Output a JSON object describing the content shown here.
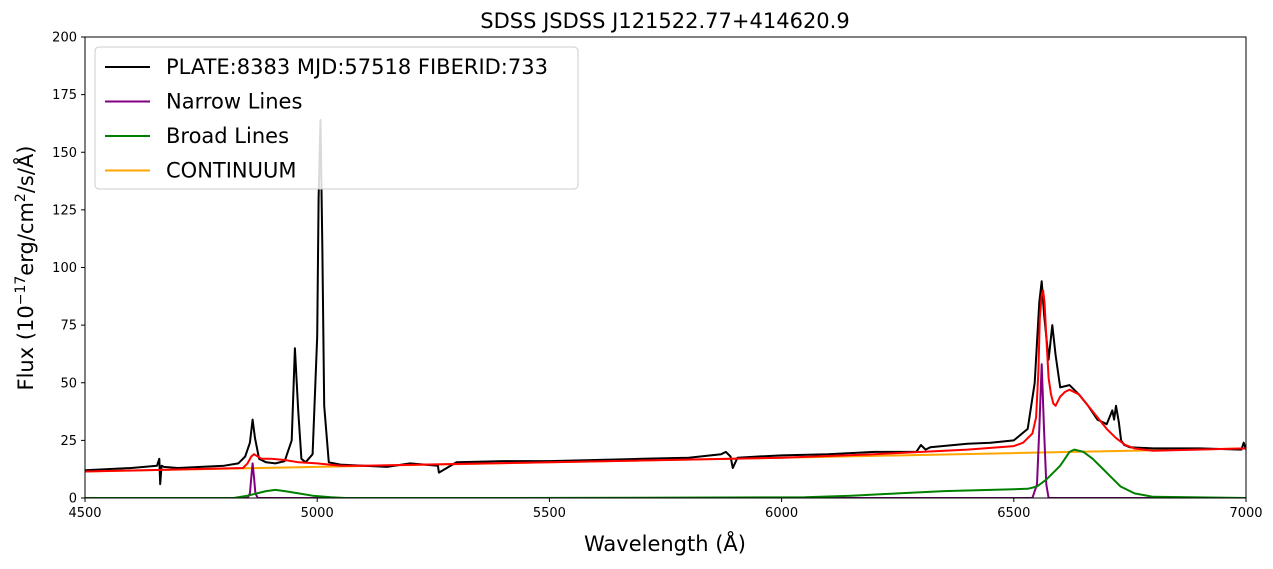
{
  "chart_data": {
    "type": "line",
    "title": "SDSS JSDSS J121522.77+414620.9",
    "xlabel": "Wavelength (Å)",
    "ylabel": {
      "prefix": "Flux (10",
      "exp1": "−17",
      "mid": "erg/cm",
      "exp2": "2",
      "suffix": "/s/Å)"
    },
    "xlim": [
      4500,
      7000
    ],
    "ylim": [
      0,
      200
    ],
    "xticks": [
      "4500",
      "5000",
      "5500",
      "6000",
      "6500",
      "7000"
    ],
    "yticks": [
      "0",
      "25",
      "50",
      "75",
      "100",
      "125",
      "150",
      "175",
      "200"
    ],
    "grid": false,
    "legend_position": "top-left",
    "legend": [
      {
        "label": "PLATE:8383 MJD:57518 FIBERID:733",
        "color": "#000000"
      },
      {
        "label": "Narrow Lines",
        "color": "#800080"
      },
      {
        "label": "Broad Lines",
        "color": "#008000"
      },
      {
        "label": "CONTINUUM",
        "color": "#ffa500"
      }
    ],
    "series": [
      {
        "name": "PLATE:8383 MJD:57518 FIBERID:733",
        "color": "#000000",
        "x": [
          4500,
          4600,
          4655,
          4660,
          4662,
          4665,
          4670,
          4700,
          4750,
          4800,
          4830,
          4845,
          4855,
          4861,
          4866,
          4875,
          4890,
          4910,
          4930,
          4945,
          4952,
          4959,
          4966,
          4975,
          4990,
          5000,
          5003,
          5007,
          5011,
          5015,
          5025,
          5050,
          5100,
          5150,
          5200,
          5260,
          5262,
          5300,
          5400,
          5500,
          5600,
          5700,
          5800,
          5870,
          5880,
          5890,
          5895,
          5905,
          5950,
          6000,
          6100,
          6200,
          6290,
          6300,
          6310,
          6320,
          6400,
          6450,
          6500,
          6530,
          6545,
          6555,
          6560,
          6565,
          6575,
          6583,
          6590,
          6600,
          6620,
          6640,
          6660,
          6680,
          6700,
          6712,
          6716,
          6720,
          6726,
          6731,
          6738,
          6750,
          6800,
          6900,
          6990,
          6995,
          7000
        ],
        "values": [
          12,
          13,
          14,
          17,
          6,
          14,
          13.5,
          13,
          13.5,
          14,
          15,
          18,
          24,
          34,
          26,
          17,
          15.5,
          15,
          16,
          25,
          65,
          38,
          17,
          15.5,
          19,
          70,
          130,
          164,
          110,
          40,
          15.5,
          14.5,
          14,
          13.5,
          15,
          14,
          11,
          15.5,
          16,
          16,
          16.5,
          17,
          17.5,
          19,
          20,
          18,
          13,
          17.5,
          18,
          18.5,
          19,
          20,
          20,
          23,
          21,
          22,
          23.5,
          24,
          25,
          30,
          50,
          85,
          94,
          80,
          60,
          75,
          62,
          48,
          49,
          45,
          40,
          34,
          32,
          38,
          34,
          40,
          33,
          25,
          23,
          22,
          21.5,
          21.5,
          21,
          24,
          21
        ]
      },
      {
        "name": "Narrow Lines",
        "color": "#800080",
        "x": [
          4500,
          4850,
          4855,
          4858,
          4861,
          4864,
          4867,
          4872,
          6540,
          6550,
          6555,
          6560,
          6565,
          6570,
          6575,
          7000
        ],
        "values": [
          0,
          0,
          2,
          9,
          15,
          9,
          2,
          0,
          0,
          6,
          30,
          58,
          30,
          6,
          0,
          0
        ]
      },
      {
        "name": "Broad Lines",
        "color": "#008000",
        "x": [
          4500,
          4820,
          4850,
          4870,
          4890,
          4910,
          4930,
          4960,
          4990,
          5030,
          5060,
          5400,
          6050,
          6150,
          6250,
          6350,
          6450,
          6500,
          6530,
          6550,
          6570,
          6590,
          6600,
          6610,
          6620,
          6630,
          6650,
          6670,
          6690,
          6710,
          6730,
          6760,
          6800,
          7000
        ],
        "values": [
          0,
          0,
          1,
          2,
          3,
          3.5,
          3,
          2,
          1,
          0.3,
          0,
          0,
          0.3,
          1,
          2,
          3,
          3.5,
          3.8,
          4,
          5,
          8,
          12,
          14,
          17,
          20,
          21,
          20,
          17,
          13,
          9,
          5,
          2,
          0.5,
          0
        ]
      },
      {
        "name": "CONTINUUM",
        "color": "#ffa500",
        "x": [
          4500,
          5000,
          5500,
          6000,
          6500,
          7000
        ],
        "values": [
          11.5,
          13.5,
          15.5,
          17.5,
          19.5,
          21.5
        ]
      },
      {
        "color": "#ff0000",
        "x": [
          4500,
          4840,
          4850,
          4858,
          4864,
          4872,
          4880,
          4900,
          4930,
          4960,
          5000,
          5050,
          5100,
          5500,
          6000,
          6200,
          6400,
          6500,
          6520,
          6540,
          6548,
          6553,
          6556,
          6560,
          6563,
          6566,
          6570,
          6575,
          6580,
          6585,
          6590,
          6595,
          6600,
          6610,
          6620,
          6640,
          6660,
          6680,
          6700,
          6720,
          6740,
          6760,
          6800,
          7000
        ],
        "values": [
          11.5,
          13,
          15,
          18,
          19,
          18,
          17,
          17,
          16.5,
          15.5,
          15,
          14,
          14,
          15.5,
          17.5,
          19,
          21,
          22.5,
          24,
          28,
          35,
          55,
          78,
          88,
          90,
          85,
          70,
          52,
          45,
          41,
          40,
          42,
          44,
          46,
          47,
          45,
          40,
          35,
          30,
          26,
          23,
          21.5,
          20.5,
          21.5
        ]
      }
    ]
  }
}
